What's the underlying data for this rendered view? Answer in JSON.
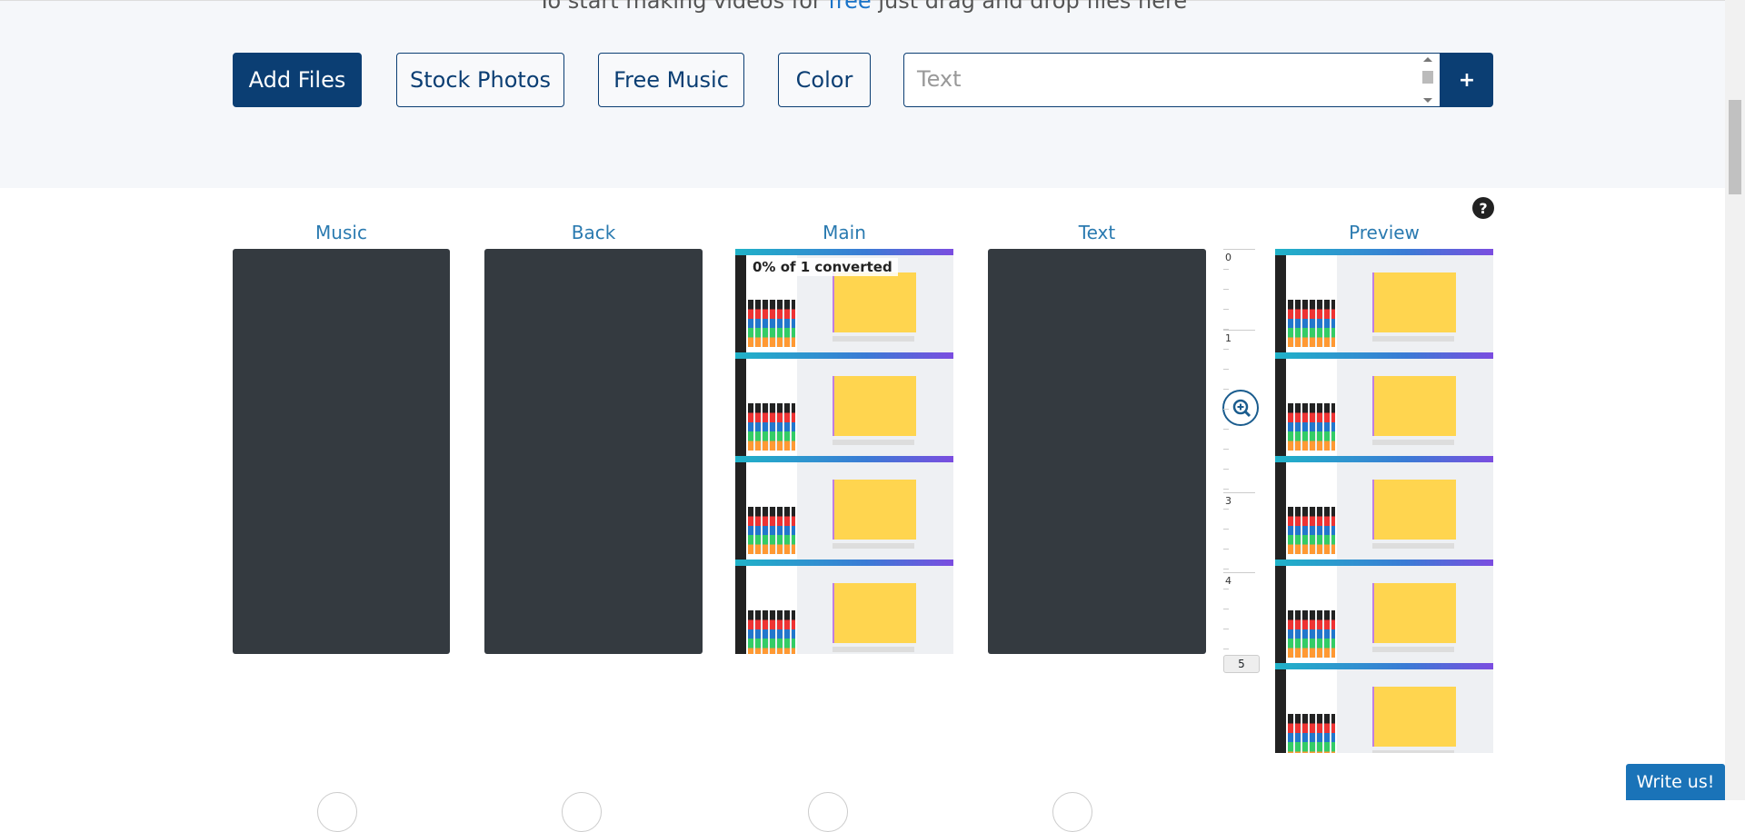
{
  "header": {
    "intro_before": "To start making videos for ",
    "intro_link": "free",
    "intro_after": " just drag and drop files here"
  },
  "toolbar": {
    "buttons": [
      "Add Files",
      "Stock Photos",
      "Free Music",
      "Color"
    ],
    "text_placeholder": "Text",
    "add_text_button": "+"
  },
  "help": "?",
  "columns": [
    "Music",
    "Back",
    "Main",
    "Text",
    "Preview"
  ],
  "main_status": "0% of 1 converted",
  "timeline": [
    "0",
    "1",
    "3",
    "5",
    "4"
  ],
  "write_us": "Write us!"
}
